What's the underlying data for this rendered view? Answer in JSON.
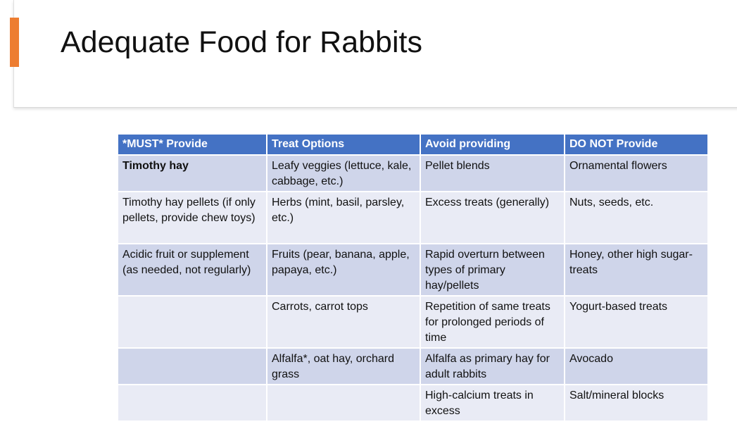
{
  "slide": {
    "title": "Adequate Food for Rabbits",
    "accent_color": "#ed7d31",
    "header_color": "#4472c4",
    "row_band_dark": "#cfd5ea",
    "row_band_light": "#e9ebf5"
  },
  "table": {
    "headers": [
      "*MUST* Provide",
      "Treat Options",
      "Avoid providing",
      "DO NOT Provide"
    ],
    "rows": [
      [
        "Timothy hay",
        "Leafy veggies (lettuce, kale, cabbage, etc.)",
        "Pellet blends",
        "Ornamental flowers"
      ],
      [
        "Timothy hay pellets (if only pellets, provide chew toys)",
        "Herbs (mint, basil, parsley, etc.)",
        "Excess treats (generally)",
        "Nuts, seeds, etc."
      ],
      [
        "Acidic fruit or supplement (as needed, not regularly)",
        "Fruits (pear, banana, apple, papaya, etc.)",
        "Rapid overturn between types of primary hay/pellets",
        "Honey, other high sugar-treats"
      ],
      [
        "",
        "Carrots, carrot tops",
        "Repetition of same treats for prolonged periods of time",
        "Yogurt-based treats"
      ],
      [
        "",
        "Alfalfa*, oat hay, orchard grass",
        "Alfalfa as primary hay for adult rabbits",
        "Avocado"
      ],
      [
        "",
        "",
        "High-calcium treats in excess",
        "Salt/mineral blocks"
      ]
    ]
  }
}
